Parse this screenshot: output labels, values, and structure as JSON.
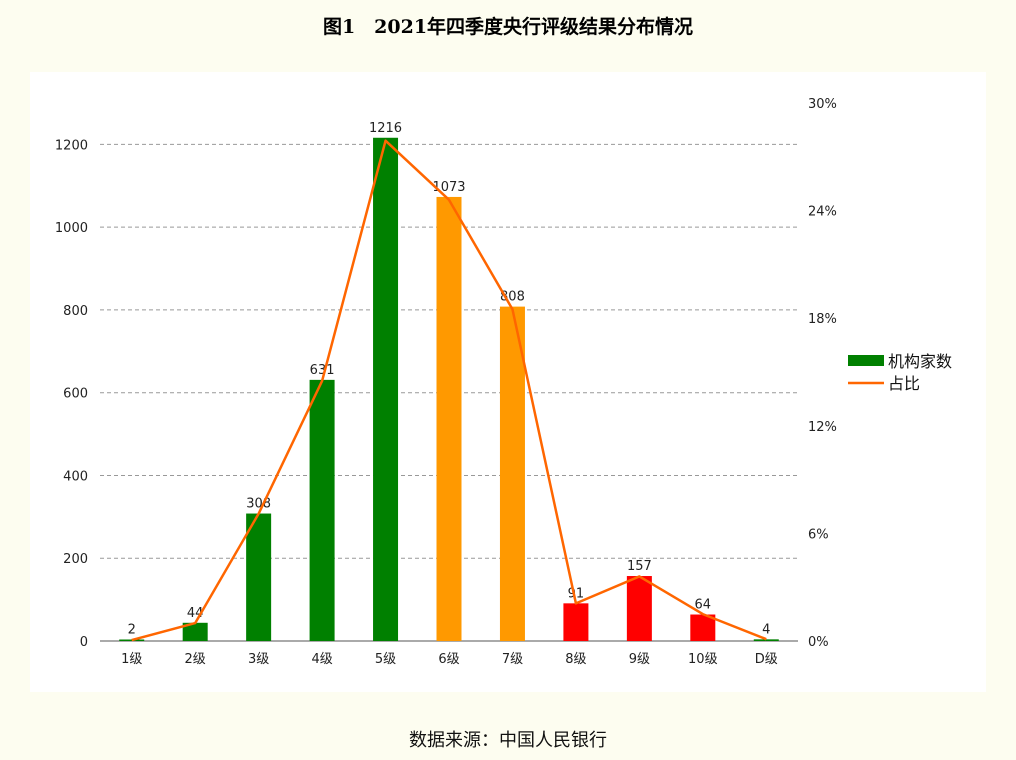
{
  "title": "图1　2021年四季度央行评级结果分布情况",
  "source": "数据来源：中国人民银行",
  "chart_data": {
    "type": "bar",
    "categories": [
      "1级",
      "2级",
      "3级",
      "4级",
      "5级",
      "6级",
      "7级",
      "8级",
      "9级",
      "10级",
      "D级"
    ],
    "series": [
      {
        "name": "机构家数",
        "type": "bar",
        "axis": "left",
        "values": [
          2,
          44,
          308,
          631,
          1216,
          1073,
          808,
          91,
          157,
          64,
          4
        ],
        "bar_colors": [
          "#008000",
          "#008000",
          "#008000",
          "#008000",
          "#008000",
          "#ff9900",
          "#ff9900",
          "#ff0000",
          "#ff0000",
          "#ff0000",
          "#008000"
        ],
        "data_labels": [
          "2",
          "44",
          "308",
          "631",
          "1216",
          "1073",
          "808",
          "91",
          "157",
          "64",
          "4"
        ]
      },
      {
        "name": "占比",
        "type": "line",
        "axis": "right",
        "color": "#ff6600",
        "values": [
          0.05,
          1.0,
          7.1,
          14.5,
          27.9,
          24.6,
          18.5,
          2.1,
          3.6,
          1.5,
          0.1
        ]
      }
    ],
    "y_left": {
      "ticks": [
        "0",
        "200",
        "400",
        "600",
        "800",
        "1000",
        "1200"
      ],
      "ylim": [
        0,
        1300
      ]
    },
    "y_right": {
      "ticks": [
        "0%",
        "6%",
        "12%",
        "18%",
        "24%",
        "30%"
      ],
      "ylim": [
        0,
        30
      ]
    },
    "grid": true,
    "legend_position": "right",
    "colors": {
      "green": "#008000",
      "orange": "#ff9900",
      "red": "#ff0000",
      "line": "#ff6600",
      "grid": "#999999"
    }
  }
}
